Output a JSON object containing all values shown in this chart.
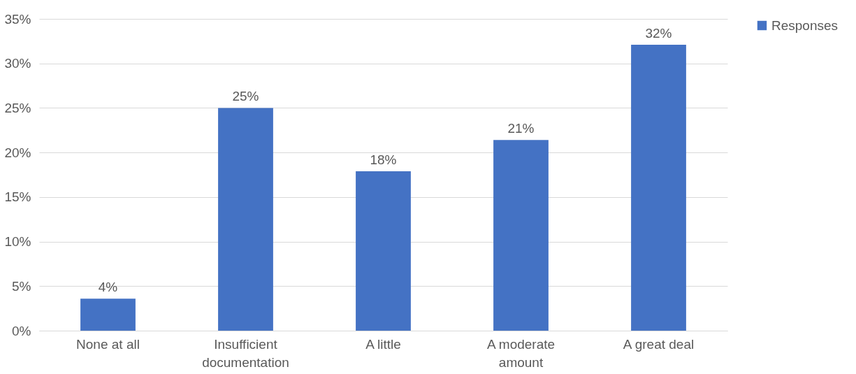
{
  "chart_data": {
    "type": "bar",
    "categories": [
      "None at all",
      "Insufficient documentation",
      "A little",
      "A moderate amount",
      "A great deal"
    ],
    "series": [
      {
        "name": "Responses",
        "color": "#4472c4",
        "values": [
          3.6,
          25,
          17.9,
          21.4,
          32.1
        ],
        "value_labels": [
          "4%",
          "25%",
          "18%",
          "21%",
          "32%"
        ]
      }
    ],
    "ylim": [
      0,
      35
    ],
    "yticks": [
      {
        "value": 0,
        "label": "0%"
      },
      {
        "value": 5,
        "label": "5%"
      },
      {
        "value": 10,
        "label": "10%"
      },
      {
        "value": 15,
        "label": "15%"
      },
      {
        "value": 20,
        "label": "20%"
      },
      {
        "value": 25,
        "label": "25%"
      },
      {
        "value": 30,
        "label": "30%"
      },
      {
        "value": 35,
        "label": "35%"
      }
    ],
    "grid": "y",
    "legend": "right"
  }
}
